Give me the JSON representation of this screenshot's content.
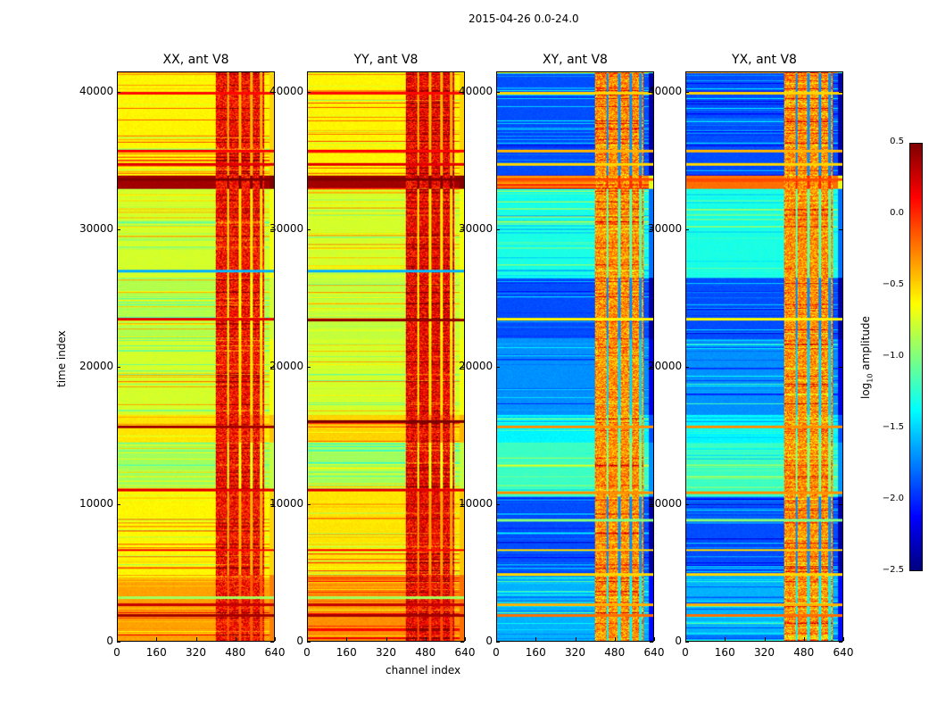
{
  "suptitle": "2015-04-26 0.0-24.0",
  "chart_data": {
    "type": "heatmap",
    "title": "2015-04-26 0.0-24.0",
    "xlabel": "channel index",
    "ylabel": "time index",
    "xlim": [
      0,
      640
    ],
    "ylim": [
      0,
      41500
    ],
    "xticks": [
      "0",
      "160",
      "320",
      "480",
      "640"
    ],
    "yticks": [
      "0",
      "10000",
      "20000",
      "30000",
      "40000"
    ],
    "colorbar": {
      "label_main": "log",
      "label_sub": "10",
      "label_rest": " amplitude",
      "range": [
        -2.5,
        0.5
      ],
      "ticks": [
        "0.5",
        "0.0",
        "−0.5",
        "−1.0",
        "−1.5",
        "−2.0",
        "−2.5"
      ],
      "colormap": "jet"
    },
    "panels": [
      {
        "title": "XX, ant V8",
        "rfi_channels": [
          400,
          600
        ],
        "rfi_value": 0.1,
        "segments": [
          [
            0,
            4800,
            -0.35
          ],
          [
            4800,
            11000,
            -0.6
          ],
          [
            11000,
            14500,
            -0.9
          ],
          [
            14500,
            16500,
            -0.55
          ],
          [
            16500,
            22000,
            -0.75
          ],
          [
            22000,
            26500,
            -0.85
          ],
          [
            26500,
            33000,
            -0.75
          ],
          [
            33000,
            34000,
            0.4
          ],
          [
            34000,
            41500,
            -0.6
          ]
        ],
        "lines": [
          [
            1800,
            0.4
          ],
          [
            2600,
            0.3
          ],
          [
            3100,
            -0.9
          ],
          [
            6600,
            0.1
          ],
          [
            11000,
            0.2
          ],
          [
            15600,
            0.4
          ],
          [
            23500,
            0.2
          ],
          [
            27000,
            -1.6
          ],
          [
            33700,
            0.5
          ],
          [
            34800,
            0.2
          ],
          [
            35800,
            0.1
          ],
          [
            40000,
            0.1
          ]
        ]
      },
      {
        "title": "YY, ant V8",
        "rfi_channels": [
          400,
          600
        ],
        "rfi_value": 0.15,
        "segments": [
          [
            0,
            4800,
            -0.3
          ],
          [
            4800,
            11000,
            -0.55
          ],
          [
            11000,
            14500,
            -0.9
          ],
          [
            14500,
            16500,
            -0.5
          ],
          [
            16500,
            22000,
            -0.75
          ],
          [
            22000,
            26500,
            -0.8
          ],
          [
            26500,
            33000,
            -0.75
          ],
          [
            33000,
            34000,
            0.4
          ],
          [
            34000,
            41500,
            -0.6
          ]
        ],
        "lines": [
          [
            1800,
            0.4
          ],
          [
            2600,
            0.3
          ],
          [
            3100,
            -0.9
          ],
          [
            6600,
            0.1
          ],
          [
            11000,
            0.2
          ],
          [
            16000,
            0.5
          ],
          [
            23400,
            0.45
          ],
          [
            27000,
            -1.6
          ],
          [
            33700,
            0.5
          ],
          [
            34800,
            0.2
          ],
          [
            35800,
            0.1
          ],
          [
            40000,
            0.1
          ]
        ]
      },
      {
        "title": "XY, ant V8",
        "rfi_channels": [
          400,
          600
        ],
        "rfi_value": -0.3,
        "segments": [
          [
            0,
            4800,
            -1.6
          ],
          [
            4800,
            10500,
            -1.9
          ],
          [
            10500,
            14500,
            -1.2
          ],
          [
            14500,
            16500,
            -1.4
          ],
          [
            16500,
            22000,
            -1.7
          ],
          [
            22000,
            26500,
            -1.9
          ],
          [
            26500,
            33000,
            -1.3
          ],
          [
            33000,
            34000,
            -0.2
          ],
          [
            34000,
            41500,
            -1.9
          ]
        ],
        "lines": [
          [
            1800,
            -0.2
          ],
          [
            2600,
            -0.4
          ],
          [
            4800,
            -0.5
          ],
          [
            6600,
            -0.5
          ],
          [
            8800,
            -1.0
          ],
          [
            10800,
            -0.3
          ],
          [
            15600,
            -0.3
          ],
          [
            23500,
            -0.6
          ],
          [
            33700,
            -0.1
          ],
          [
            34800,
            -0.5
          ],
          [
            35800,
            -0.4
          ],
          [
            40000,
            -0.5
          ]
        ]
      },
      {
        "title": "YX, ant V8",
        "rfi_channels": [
          400,
          600
        ],
        "rfi_value": -0.3,
        "segments": [
          [
            0,
            4800,
            -1.6
          ],
          [
            4800,
            10500,
            -1.9
          ],
          [
            10500,
            14500,
            -1.2
          ],
          [
            14500,
            16500,
            -1.4
          ],
          [
            16500,
            22000,
            -1.7
          ],
          [
            22000,
            26500,
            -1.9
          ],
          [
            26500,
            33000,
            -1.3
          ],
          [
            33000,
            34000,
            -0.2
          ],
          [
            34000,
            41500,
            -1.9
          ]
        ],
        "lines": [
          [
            1800,
            -0.2
          ],
          [
            2600,
            -0.4
          ],
          [
            4800,
            -0.5
          ],
          [
            6600,
            -0.5
          ],
          [
            8800,
            -1.0
          ],
          [
            10800,
            -0.3
          ],
          [
            15600,
            -0.3
          ],
          [
            23500,
            -0.6
          ],
          [
            33700,
            -0.1
          ],
          [
            34800,
            -0.5
          ],
          [
            35800,
            -0.4
          ],
          [
            40000,
            -0.5
          ]
        ]
      }
    ]
  }
}
